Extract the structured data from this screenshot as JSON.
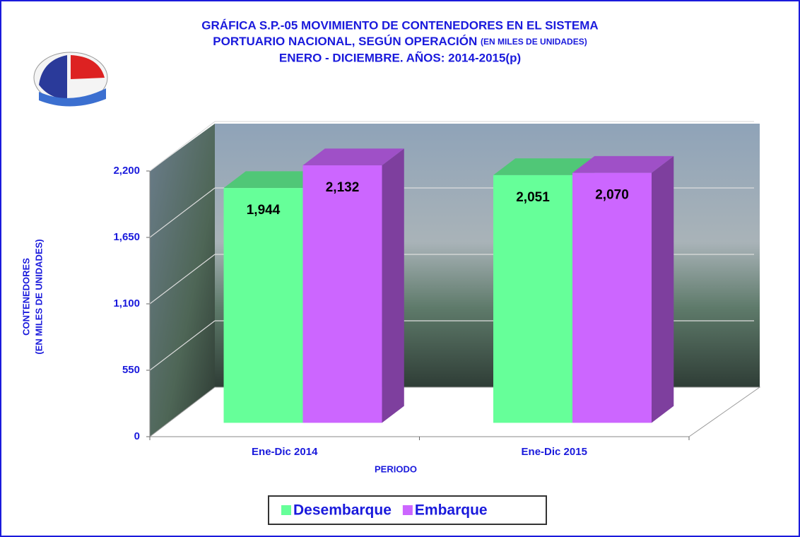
{
  "chart_data": {
    "type": "bar3d",
    "title": {
      "line1": "GRÁFICA S.P.-05 MOVIMIENTO DE CONTENEDORES EN EL SISTEMA",
      "line2": "PORTUARIO NACIONAL, SEGÚN OPERACIÓN",
      "line2_note": "(EN MILES DE UNIDADES)",
      "line3": "ENERO - DICIEMBRE. AÑOS: 2014-2015(p)"
    },
    "y_label": [
      "CONTENEDORES",
      "(EN MILES DE UNIDADES)"
    ],
    "x_label": "PERIODO",
    "categories": [
      "Ene-Dic 2014",
      "Ene-Dic 2015"
    ],
    "series": [
      {
        "name": "Desembarque",
        "color": "#66ff99",
        "values": [
          1944,
          2051
        ],
        "value_labels": [
          "1,944",
          "2,051"
        ]
      },
      {
        "name": "Embarque",
        "color": "#cc66ff",
        "values": [
          2132,
          2070
        ],
        "value_labels": [
          "2,132",
          "2,070"
        ]
      }
    ],
    "ylim": [
      0,
      2200
    ],
    "yticks": [
      0,
      550,
      {
        "value": 1100,
        "label": "1,100"
      },
      {
        "value": 1650,
        "label": "1,650"
      },
      {
        "value": 2200,
        "label": "2,200"
      }
    ],
    "grid": true
  }
}
